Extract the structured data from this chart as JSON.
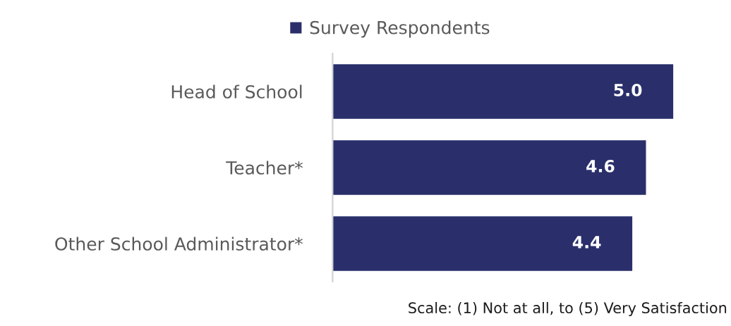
{
  "chart_data": {
    "type": "bar",
    "orientation": "horizontal",
    "categories": [
      "Head of School",
      "Teacher*",
      "Other School Administrator*"
    ],
    "series": [
      {
        "name": "Survey Respondents",
        "color": "#2a2f6b",
        "values": [
          5.0,
          4.6,
          4.4
        ],
        "value_labels": [
          "5.0",
          "4.6",
          "4.4"
        ]
      }
    ],
    "tick_labels": "y",
    "legend": "top",
    "grid": false,
    "annotations": [
      "Scale: (1) Not at all, to (5) Very Satisfaction"
    ]
  }
}
